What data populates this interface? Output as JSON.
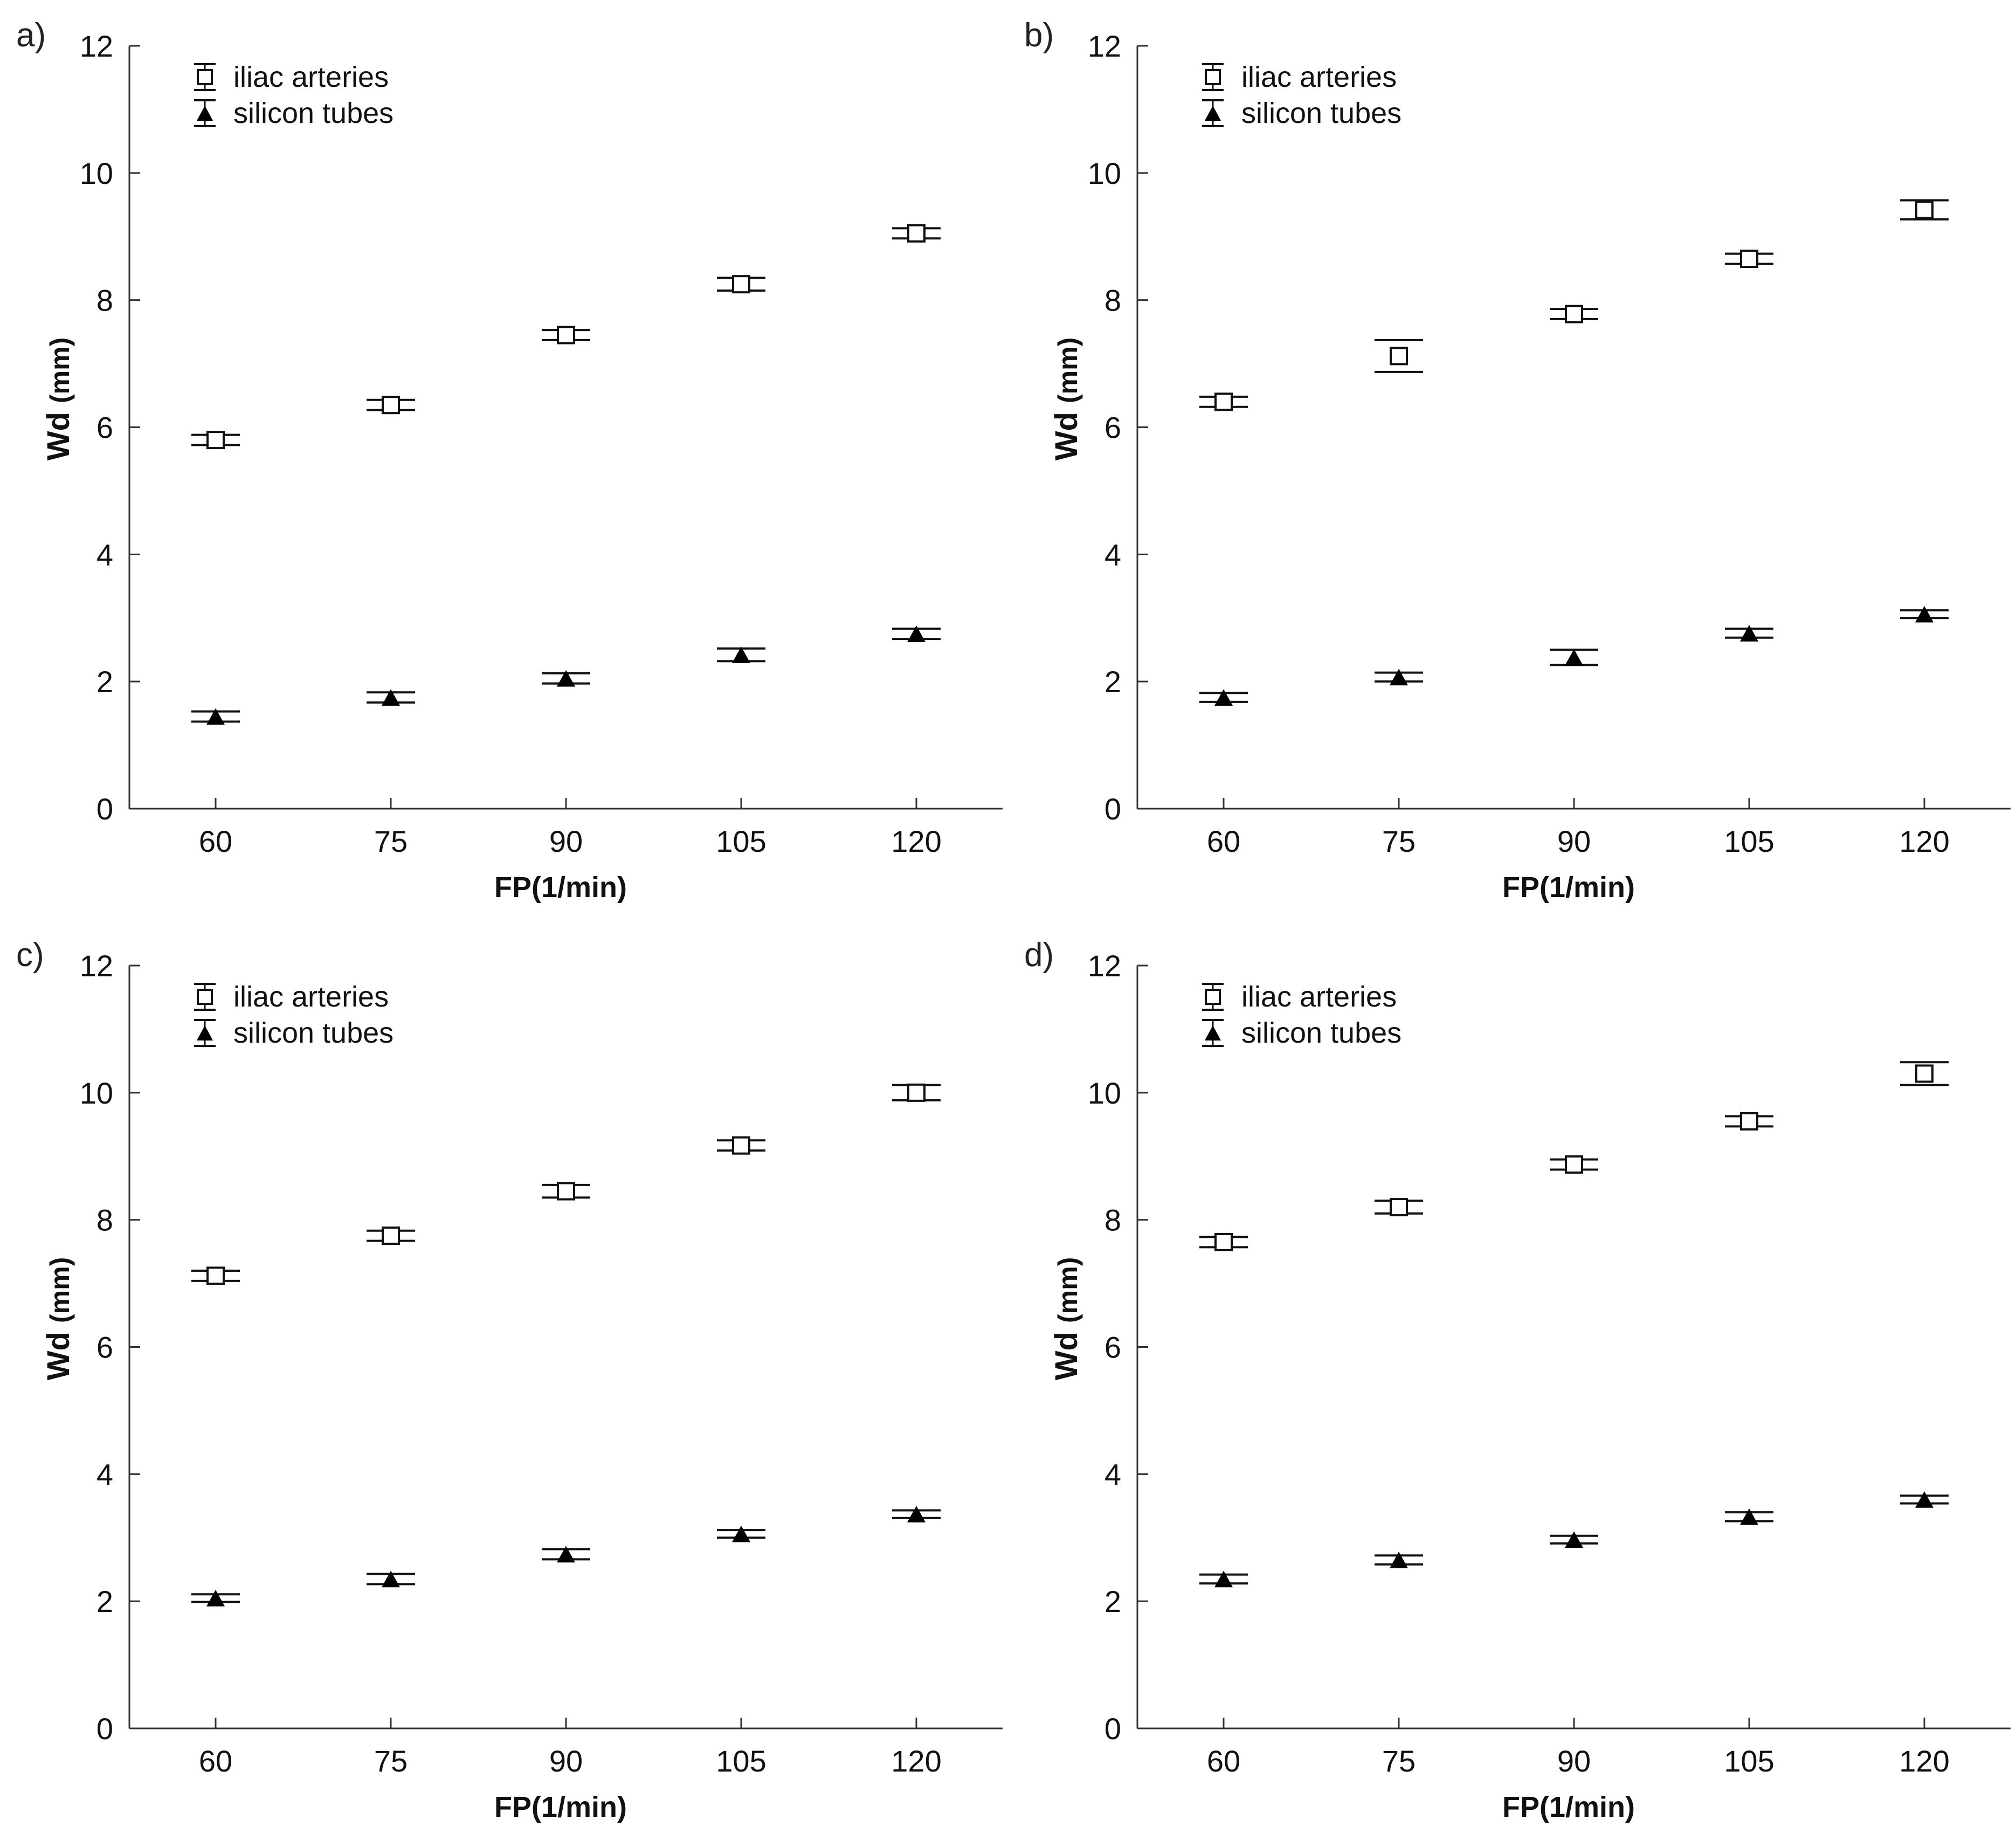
{
  "chart_data": [
    {
      "type": "scatter",
      "panel_label": "a)",
      "xlabel": "FP(1/min)",
      "ylabel": "Wd",
      "ylabel_unit": "(mm)",
      "categories": [
        "60",
        "75",
        "90",
        "105",
        "120"
      ],
      "ylim": [
        0,
        12
      ],
      "yticks": [
        "0",
        "2",
        "4",
        "6",
        "8",
        "10",
        "12"
      ],
      "legend_position": "top-left",
      "series": [
        {
          "name": "iliac arteries",
          "marker": "open-square",
          "values": [
            5.8,
            6.35,
            7.45,
            8.25,
            9.05
          ],
          "errors": [
            0.08,
            0.08,
            0.08,
            0.1,
            0.08
          ]
        },
        {
          "name": "silicon tubes",
          "marker": "filled-triangle",
          "values": [
            1.45,
            1.75,
            2.05,
            2.42,
            2.75
          ],
          "errors": [
            0.08,
            0.08,
            0.08,
            0.1,
            0.08
          ]
        }
      ]
    },
    {
      "type": "scatter",
      "panel_label": "b)",
      "xlabel": "FP(1/min)",
      "ylabel": "Wd",
      "ylabel_unit": "(mm)",
      "categories": [
        "60",
        "75",
        "90",
        "105",
        "120"
      ],
      "ylim": [
        0,
        12
      ],
      "yticks": [
        "0",
        "2",
        "4",
        "6",
        "8",
        "10",
        "12"
      ],
      "legend_position": "top-left",
      "series": [
        {
          "name": "iliac arteries",
          "marker": "open-square",
          "values": [
            6.4,
            7.12,
            7.78,
            8.65,
            9.42
          ],
          "errors": [
            0.08,
            0.25,
            0.08,
            0.08,
            0.15
          ]
        },
        {
          "name": "silicon tubes",
          "marker": "filled-triangle",
          "values": [
            1.75,
            2.07,
            2.38,
            2.76,
            3.06
          ],
          "errors": [
            0.07,
            0.07,
            0.12,
            0.07,
            0.06
          ]
        }
      ]
    },
    {
      "type": "scatter",
      "panel_label": "c)",
      "xlabel": "FP(1/min)",
      "ylabel": "Wd",
      "ylabel_unit": "(mm)",
      "categories": [
        "60",
        "75",
        "90",
        "105",
        "120"
      ],
      "ylim": [
        0,
        12
      ],
      "yticks": [
        "0",
        "2",
        "4",
        "6",
        "8",
        "10",
        "12"
      ],
      "legend_position": "top-left",
      "series": [
        {
          "name": "iliac arteries",
          "marker": "open-square",
          "values": [
            7.12,
            7.75,
            8.45,
            9.17,
            10.0
          ],
          "errors": [
            0.08,
            0.08,
            0.1,
            0.08,
            0.12
          ]
        },
        {
          "name": "silicon tubes",
          "marker": "filled-triangle",
          "values": [
            2.05,
            2.35,
            2.74,
            3.06,
            3.37
          ],
          "errors": [
            0.06,
            0.08,
            0.08,
            0.06,
            0.06
          ]
        }
      ]
    },
    {
      "type": "scatter",
      "panel_label": "d)",
      "xlabel": "FP(1/min)",
      "ylabel": "Wd",
      "ylabel_unit": "(mm)",
      "categories": [
        "60",
        "75",
        "90",
        "105",
        "120"
      ],
      "ylim": [
        0,
        12
      ],
      "yticks": [
        "0",
        "2",
        "4",
        "6",
        "8",
        "10",
        "12"
      ],
      "legend_position": "top-left",
      "series": [
        {
          "name": "iliac arteries",
          "marker": "open-square",
          "values": [
            7.65,
            8.2,
            8.87,
            9.55,
            10.3
          ],
          "errors": [
            0.08,
            0.1,
            0.08,
            0.08,
            0.18
          ]
        },
        {
          "name": "silicon tubes",
          "marker": "filled-triangle",
          "values": [
            2.35,
            2.65,
            2.97,
            3.33,
            3.6
          ],
          "errors": [
            0.07,
            0.07,
            0.06,
            0.07,
            0.06
          ]
        }
      ]
    }
  ]
}
